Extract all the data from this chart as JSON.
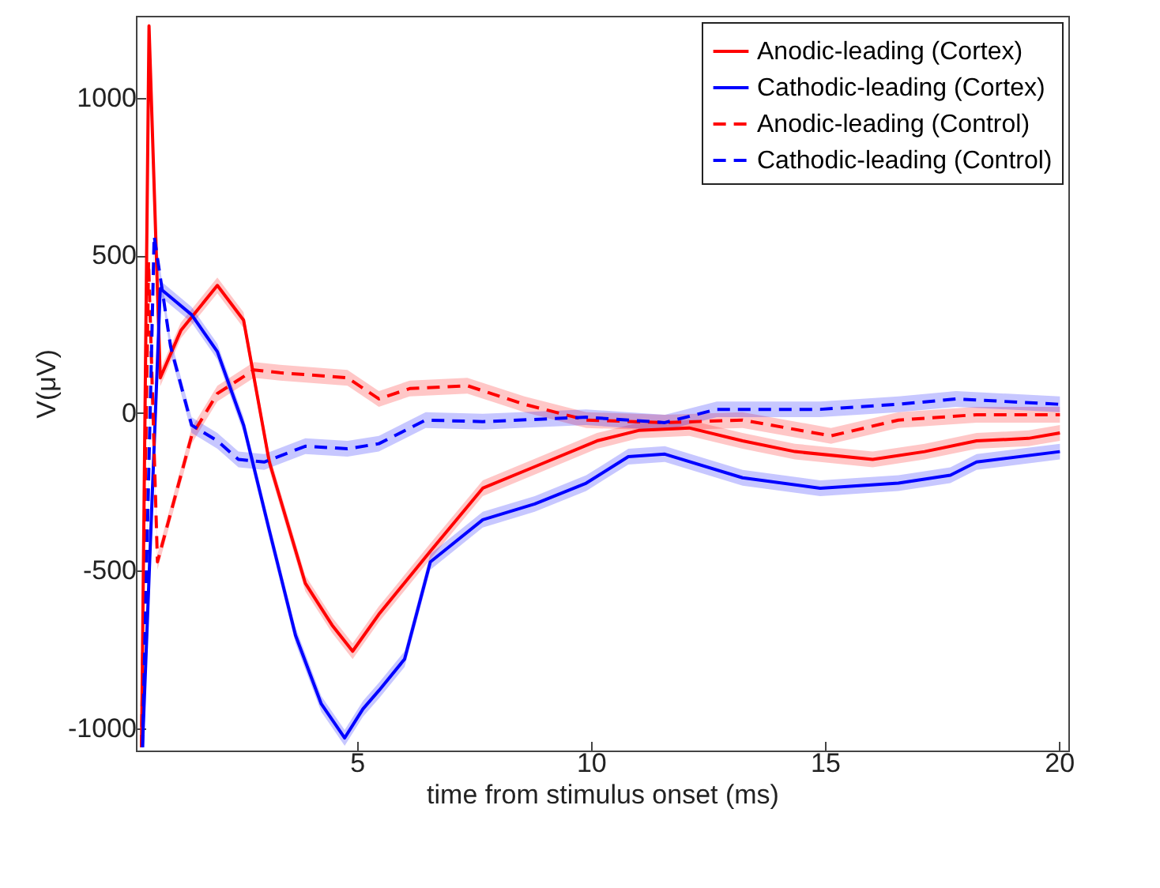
{
  "chart_data": {
    "type": "line",
    "xlabel": "time from stimulus onset (ms)",
    "ylabel": "V(μV)",
    "xlim": [
      0.28,
      20.2
    ],
    "ylim": [
      -1070,
      1260
    ],
    "xticks": [
      5,
      10,
      15,
      20
    ],
    "yticks": [
      -1000,
      -500,
      0,
      500,
      1000
    ],
    "grid": false,
    "legend": "top right",
    "marker": "none",
    "series": [
      {
        "name": "Anodic-leading (Cortex)",
        "color": "#ff0000",
        "line_style": "solid",
        "x": [
          0.4,
          0.56,
          0.8,
          1.24,
          2.02,
          2.58,
          3.13,
          3.9,
          4.47,
          4.91,
          5.47,
          6.57,
          7.69,
          8.8,
          10.13,
          11.02,
          12.1,
          13.24,
          14.36,
          16.02,
          17.13,
          18.24,
          19.35,
          20.02
        ],
        "values": [
          -1060,
          1228,
          112,
          262,
          405,
          295,
          -155,
          -540,
          -672,
          -755,
          -638,
          -438,
          -238,
          -170,
          -88,
          -55,
          -47,
          -88,
          -122,
          -147,
          -122,
          -88,
          -80,
          -63
        ],
        "lower": [
          -1070,
          1200,
          85,
          237,
          380,
          270,
          -180,
          -565,
          -697,
          -780,
          -663,
          -463,
          -263,
          -195,
          -113,
          -80,
          -72,
          -113,
          -147,
          -172,
          -147,
          -113,
          -105,
          -88
        ],
        "upper": [
          -1040,
          1255,
          137,
          287,
          430,
          320,
          -130,
          -515,
          -647,
          -730,
          -613,
          -413,
          -213,
          -145,
          -63,
          -30,
          -22,
          -63,
          -97,
          -122,
          -97,
          -63,
          -55,
          -38
        ]
      },
      {
        "name": "Cathodic-leading (Cortex)",
        "color": "#0000ff",
        "line_style": "solid",
        "x": [
          0.42,
          0.8,
          1.47,
          2.02,
          2.58,
          3.13,
          3.69,
          4.24,
          4.74,
          5.13,
          5.47,
          6.02,
          6.57,
          7.69,
          8.8,
          9.9,
          10.8,
          11.58,
          13.24,
          14.9,
          16.57,
          17.68,
          18.24,
          20.02
        ],
        "values": [
          -1060,
          395,
          312,
          195,
          -38,
          -372,
          -705,
          -922,
          -1030,
          -938,
          -880,
          -780,
          -472,
          -338,
          -288,
          -222,
          -138,
          -130,
          -205,
          -238,
          -222,
          -197,
          -155,
          -122
        ],
        "lower": [
          -1070,
          370,
          287,
          170,
          -63,
          -397,
          -730,
          -947,
          -1055,
          -963,
          -905,
          -805,
          -497,
          -363,
          -313,
          -247,
          -163,
          -155,
          -230,
          -263,
          -247,
          -222,
          -180,
          -147
        ],
        "upper": [
          -1040,
          420,
          337,
          220,
          -13,
          -347,
          -680,
          -897,
          -1005,
          -913,
          -855,
          -755,
          -447,
          -313,
          -263,
          -197,
          -113,
          -105,
          -180,
          -213,
          -197,
          -172,
          -130,
          -97
        ]
      },
      {
        "name": "Anodic-leading (Control)",
        "color": "#ff0000",
        "line_style": "dashed",
        "x": [
          0.4,
          0.55,
          0.74,
          1.47,
          2.02,
          2.8,
          3.36,
          4.8,
          5.47,
          6.13,
          7.36,
          8.58,
          9.9,
          11.58,
          13.24,
          15.13,
          16.57,
          18.24,
          20.02
        ],
        "values": [
          -1060,
          480,
          -472,
          -72,
          62,
          137,
          128,
          112,
          45,
          78,
          87,
          28,
          -22,
          -30,
          -22,
          -72,
          -22,
          -5,
          -5
        ],
        "lower": [
          -1070,
          455,
          -497,
          -97,
          37,
          112,
          103,
          87,
          20,
          53,
          62,
          3,
          -47,
          -55,
          -47,
          -97,
          -47,
          -30,
          -30
        ],
        "upper": [
          -1040,
          505,
          -447,
          -47,
          87,
          162,
          153,
          137,
          70,
          103,
          112,
          53,
          3,
          -5,
          3,
          -47,
          3,
          20,
          20
        ]
      },
      {
        "name": "Cathodic-leading (Control)",
        "color": "#0000ff",
        "line_style": "dashed",
        "x": [
          0.42,
          0.67,
          1.02,
          1.47,
          2.02,
          2.47,
          3.02,
          3.9,
          4.8,
          5.47,
          6.47,
          7.69,
          9.9,
          11.58,
          12.69,
          14.9,
          16.57,
          17.8,
          20.02
        ],
        "values": [
          -1060,
          562,
          212,
          -38,
          -88,
          -147,
          -155,
          -105,
          -113,
          -97,
          -22,
          -27,
          -13,
          -30,
          12,
          12,
          28,
          45,
          28
        ],
        "lower": [
          -1070,
          537,
          187,
          -63,
          -113,
          -172,
          -180,
          -130,
          -138,
          -122,
          -47,
          -52,
          -38,
          -55,
          -13,
          -13,
          3,
          20,
          3
        ],
        "upper": [
          -1040,
          587,
          237,
          -13,
          -63,
          -122,
          -130,
          -80,
          -88,
          -72,
          3,
          -2,
          12,
          -5,
          37,
          37,
          53,
          70,
          53
        ]
      }
    ]
  }
}
